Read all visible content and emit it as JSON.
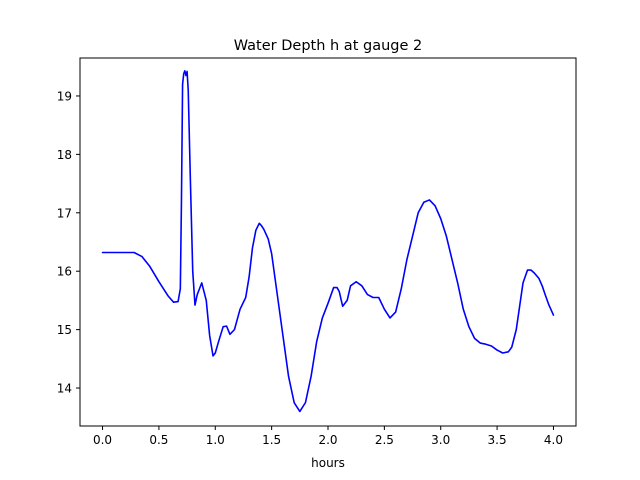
{
  "chart_data": {
    "type": "line",
    "title": "Water Depth h at gauge 2",
    "xlabel": "hours",
    "ylabel": "",
    "xlim": [
      -0.2,
      4.2
    ],
    "ylim": [
      13.35,
      19.65
    ],
    "xticks": [
      0.0,
      0.5,
      1.0,
      1.5,
      2.0,
      2.5,
      3.0,
      3.5,
      4.0
    ],
    "xtick_labels": [
      "0.0",
      "0.5",
      "1.0",
      "1.5",
      "2.0",
      "2.5",
      "3.0",
      "3.5",
      "4.0"
    ],
    "yticks": [
      14,
      15,
      16,
      17,
      18,
      19
    ],
    "ytick_labels": [
      "14",
      "15",
      "16",
      "17",
      "18",
      "19"
    ],
    "grid": false,
    "series": [
      {
        "color": "#0000ff",
        "x": [
          0.0,
          0.1,
          0.2,
          0.28,
          0.35,
          0.42,
          0.5,
          0.58,
          0.63,
          0.67,
          0.69,
          0.7,
          0.71,
          0.72,
          0.73,
          0.74,
          0.75,
          0.76,
          0.78,
          0.8,
          0.82,
          0.84,
          0.86,
          0.88,
          0.92,
          0.95,
          0.98,
          1.0,
          1.03,
          1.07,
          1.1,
          1.13,
          1.17,
          1.22,
          1.27,
          1.3,
          1.33,
          1.36,
          1.39,
          1.41,
          1.43,
          1.47,
          1.5,
          1.55,
          1.6,
          1.65,
          1.7,
          1.75,
          1.8,
          1.85,
          1.9,
          1.95,
          2.0,
          2.05,
          2.08,
          2.1,
          2.13,
          2.17,
          2.2,
          2.25,
          2.3,
          2.35,
          2.4,
          2.45,
          2.5,
          2.55,
          2.6,
          2.65,
          2.7,
          2.75,
          2.8,
          2.85,
          2.9,
          2.95,
          3.0,
          3.05,
          3.1,
          3.15,
          3.2,
          3.25,
          3.3,
          3.35,
          3.4,
          3.45,
          3.5,
          3.55,
          3.6,
          3.63,
          3.67,
          3.7,
          3.73,
          3.77,
          3.8,
          3.83,
          3.87,
          3.9,
          3.93,
          3.96,
          4.0
        ],
        "y": [
          16.32,
          16.32,
          16.32,
          16.32,
          16.25,
          16.08,
          15.82,
          15.58,
          15.47,
          15.48,
          15.7,
          17.2,
          19.2,
          19.38,
          19.43,
          19.35,
          19.42,
          19.1,
          17.5,
          16.0,
          15.42,
          15.6,
          15.7,
          15.8,
          15.5,
          14.9,
          14.55,
          14.6,
          14.8,
          15.05,
          15.06,
          14.92,
          15.0,
          15.35,
          15.55,
          15.9,
          16.4,
          16.7,
          16.82,
          16.78,
          16.72,
          16.55,
          16.3,
          15.6,
          14.9,
          14.2,
          13.75,
          13.6,
          13.75,
          14.2,
          14.8,
          15.2,
          15.45,
          15.72,
          15.72,
          15.65,
          15.4,
          15.5,
          15.75,
          15.82,
          15.75,
          15.6,
          15.55,
          15.55,
          15.35,
          15.2,
          15.3,
          15.7,
          16.2,
          16.6,
          17.0,
          17.18,
          17.22,
          17.12,
          16.9,
          16.6,
          16.2,
          15.8,
          15.35,
          15.05,
          14.85,
          14.77,
          14.75,
          14.72,
          14.65,
          14.6,
          14.62,
          14.7,
          15.0,
          15.4,
          15.8,
          16.02,
          16.02,
          15.97,
          15.88,
          15.75,
          15.58,
          15.42,
          15.25
        ]
      }
    ]
  }
}
